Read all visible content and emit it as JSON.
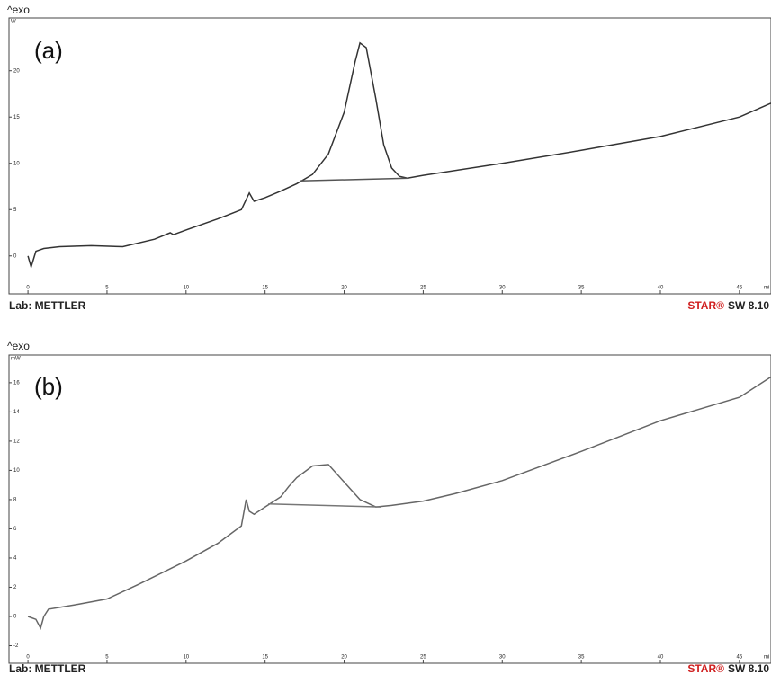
{
  "chart_data": [
    {
      "type": "line",
      "header": "^exo",
      "annotation": "(a)",
      "ylabel": "W",
      "xlabel": "mi",
      "footer_left": "Lab: METTLER",
      "footer_brand": "STAR®",
      "footer_version": "SW 8.10",
      "xlim": [
        -1.2,
        47
      ],
      "ylim": [
        -4.1,
        25.7
      ],
      "xticks": [
        0,
        5,
        10,
        15,
        20,
        25,
        30,
        35,
        40,
        45
      ],
      "yticks": [
        0,
        5,
        10,
        15,
        20
      ],
      "series": [
        {
          "color": "#333333",
          "x": [
            0,
            0.2,
            0.5,
            1,
            2,
            4,
            6,
            8,
            9,
            9.2,
            10,
            12,
            13.5,
            14,
            14.3,
            15,
            16,
            17,
            18,
            19,
            20,
            20.7,
            21,
            21.4,
            22,
            22.5,
            23,
            23.5,
            24,
            25,
            30,
            35,
            40,
            45,
            47
          ],
          "values": [
            0,
            -1.2,
            0.5,
            0.8,
            1,
            1.1,
            1,
            1.8,
            2.5,
            2.3,
            2.8,
            4,
            5,
            6.8,
            5.9,
            6.3,
            7,
            7.8,
            8.8,
            11,
            15.5,
            21,
            23,
            22.5,
            17,
            12,
            9.5,
            8.6,
            8.4,
            8.7,
            10,
            11.4,
            12.9,
            15,
            16.5
          ]
        },
        {
          "color": "#555555",
          "x": [
            17.2,
            24.1
          ],
          "values": [
            8.1,
            8.4
          ]
        }
      ]
    },
    {
      "type": "line",
      "header": "^exo",
      "annotation": "(b)",
      "ylabel": "mW",
      "xlabel": "mi",
      "footer_left": "Lab: METTLER",
      "footer_brand": "STAR®",
      "footer_version": "SW 8.10",
      "xlim": [
        -1.2,
        47
      ],
      "ylim": [
        -3.2,
        17.9
      ],
      "xticks": [
        0,
        5,
        10,
        15,
        20,
        25,
        30,
        35,
        40,
        45
      ],
      "yticks": [
        -2,
        0,
        2,
        4,
        6,
        8,
        10,
        12,
        14,
        16
      ],
      "series": [
        {
          "color": "#666666",
          "x": [
            0,
            0.5,
            0.8,
            1,
            1.3,
            3,
            5,
            7,
            10,
            12,
            13.5,
            13.8,
            14,
            14.3,
            15,
            16,
            16.5,
            17,
            18,
            19,
            20,
            21,
            22,
            23,
            25,
            27,
            30,
            35,
            40,
            45,
            47
          ],
          "values": [
            0,
            -0.2,
            -0.8,
            0,
            0.5,
            0.8,
            1.2,
            2.2,
            3.8,
            5,
            6.2,
            8,
            7.2,
            7,
            7.5,
            8.2,
            8.9,
            9.5,
            10.3,
            10.4,
            9.2,
            8,
            7.5,
            7.6,
            7.9,
            8.4,
            9.3,
            11.3,
            13.4,
            15,
            16.4
          ]
        },
        {
          "color": "#777777",
          "x": [
            15.2,
            22.3
          ],
          "values": [
            7.7,
            7.5
          ]
        }
      ]
    }
  ]
}
